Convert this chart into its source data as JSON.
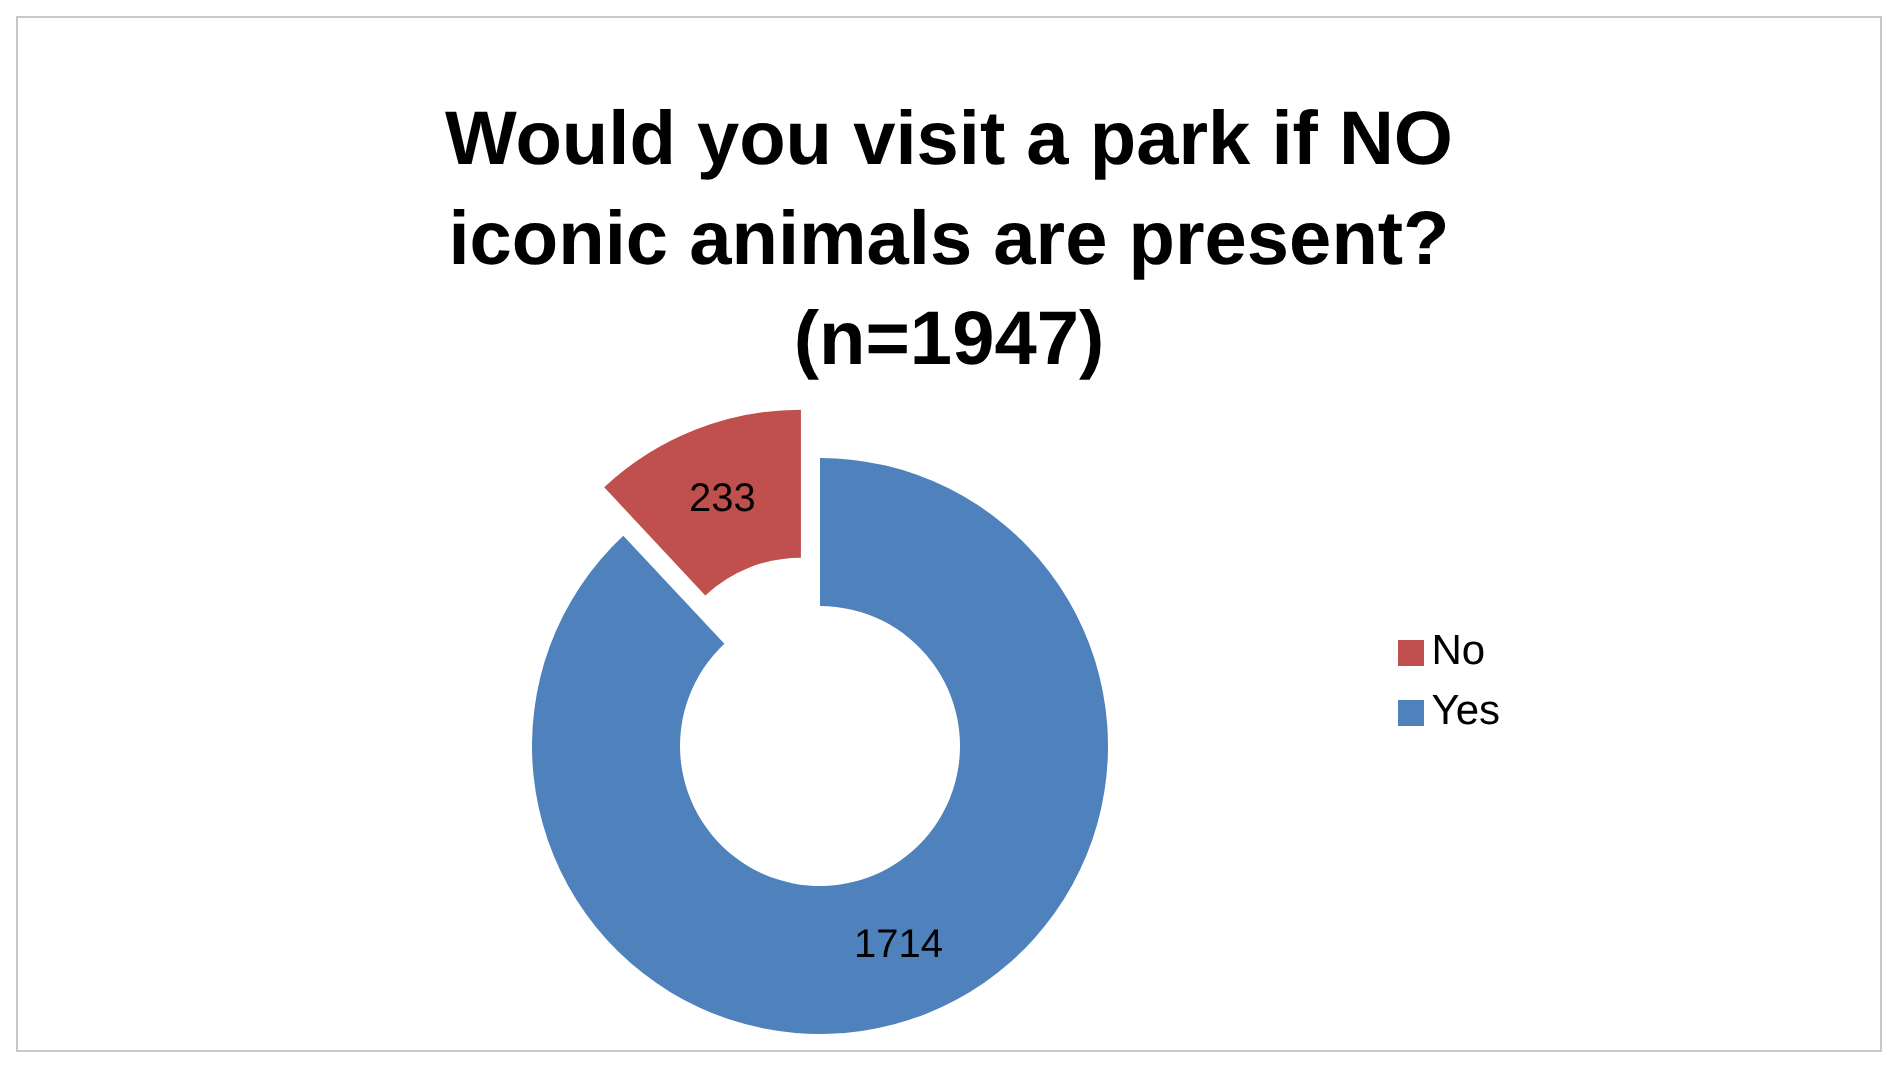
{
  "chart_data": {
    "type": "donut",
    "title": "Would you visit a park if NO iconic animals are present? (n=1947)",
    "categories": [
      "Yes",
      "No"
    ],
    "values": [
      1714,
      233
    ],
    "colors": [
      "#4f81bd",
      "#c0504d"
    ],
    "data_labels": true,
    "legend": "right"
  }
}
